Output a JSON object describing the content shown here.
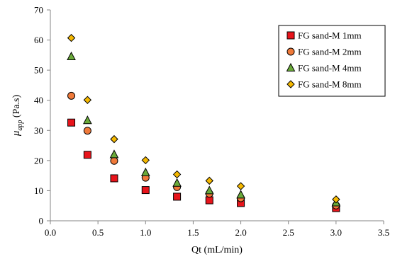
{
  "chart_data": {
    "type": "scatter",
    "xlabel": "Qt (mL/min)",
    "ylabel": {
      "symbol": "μ",
      "subscript": "app",
      "unit": " (Pa.s)"
    },
    "xlim": [
      0,
      3.5
    ],
    "ylim": [
      0,
      70
    ],
    "x_ticks": [
      "0.0",
      "0.5",
      "1.0",
      "1.5",
      "2.0",
      "2.5",
      "3.0",
      "3.5"
    ],
    "y_ticks": [
      "0",
      "10",
      "20",
      "30",
      "40",
      "50",
      "60",
      "70"
    ],
    "grid": false,
    "legend_position": "top-right",
    "series": [
      {
        "name": "FG sand-M 1mm",
        "marker": "square",
        "color": "#e8141b",
        "x": [
          0.22,
          0.39,
          0.67,
          1.0,
          1.33,
          1.67,
          2.0,
          3.0
        ],
        "y": [
          32.6,
          21.9,
          14.1,
          10.2,
          8.0,
          6.8,
          5.9,
          4.2
        ]
      },
      {
        "name": "FG sand-M 2mm",
        "marker": "circle",
        "color": "#f07a3a",
        "x": [
          0.22,
          0.39,
          0.67,
          1.0,
          1.33,
          1.67,
          2.0,
          3.0
        ],
        "y": [
          41.5,
          29.9,
          19.9,
          14.3,
          11.2,
          9.0,
          7.5,
          5.1
        ]
      },
      {
        "name": "FG sand-M 4mm",
        "marker": "triangle",
        "color": "#6aaa3a",
        "x": [
          0.22,
          0.39,
          0.67,
          1.0,
          1.33,
          1.67,
          2.0,
          3.0
        ],
        "y": [
          54.5,
          33.3,
          22.0,
          16.0,
          12.5,
          10.0,
          8.6,
          6.0
        ]
      },
      {
        "name": "FG sand-M 8mm",
        "marker": "diamond",
        "color": "#f5b800",
        "x": [
          0.22,
          0.39,
          0.67,
          1.0,
          1.33,
          1.67,
          2.0,
          3.0
        ],
        "y": [
          60.7,
          40.1,
          27.1,
          20.1,
          15.4,
          13.3,
          11.5,
          7.1
        ]
      }
    ]
  }
}
